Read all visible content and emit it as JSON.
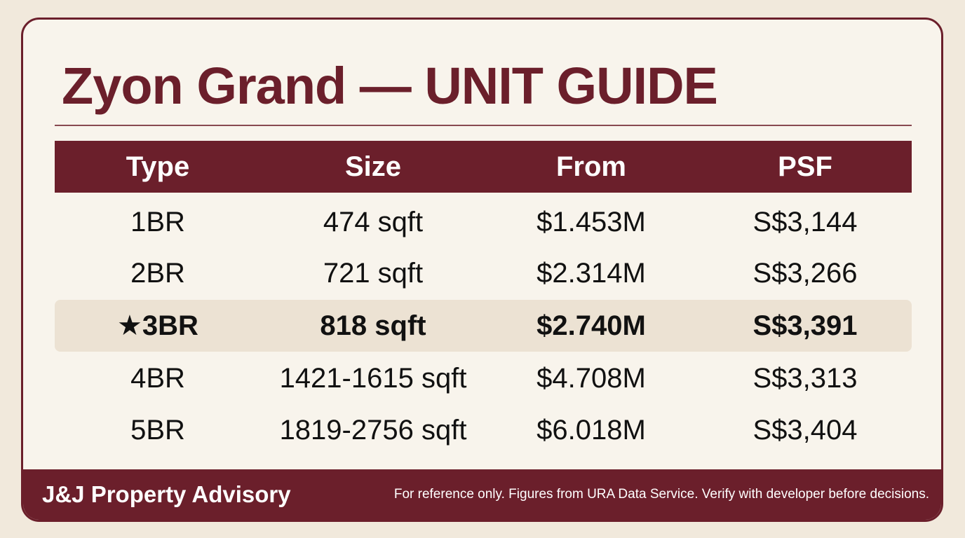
{
  "header": {
    "title": "Zyon Grand — UNIT GUIDE"
  },
  "table": {
    "columns": [
      "Type",
      "Size",
      "From",
      "PSF"
    ],
    "rows": [
      [
        "1BR",
        "474 sqft",
        "$1.453M",
        "S$3,144"
      ],
      [
        "2BR",
        "721 sqft",
        "$2.314M",
        "S$3,266"
      ],
      [
        "★3BR",
        "818 sqft",
        "$2.740M",
        "S$3,391"
      ],
      [
        "4BR",
        "1421-1615 sqft",
        "$4.708M",
        "S$3,313"
      ],
      [
        "5BR",
        "1819-2756 sqft",
        "$6.018M",
        "S$3,404"
      ]
    ]
  },
  "footer": {
    "brand": "J&J Property Advisory",
    "disclaimer": "For reference only. Figures from URA Data Service. Verify with developer before decisions."
  }
}
